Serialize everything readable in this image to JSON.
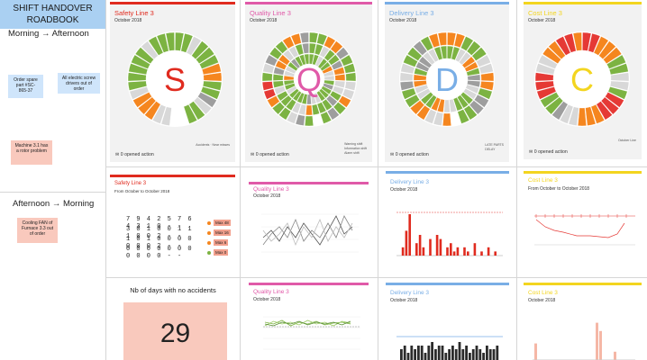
{
  "sidebar": {
    "title_line1": "SHIFT HANDOVER",
    "title_line2": "ROADBOOK",
    "period1": "Morning → Afternoon",
    "period2": "Afternoon → Morning",
    "notes": [
      "Order spare part #SC-865-37",
      "All electric screw drivers out of order",
      "Machine 3.1 has a rotor problem",
      "Cooling FAN of Furnace 3.3 out of order"
    ]
  },
  "colors": {
    "safety": "#e02b1f",
    "quality": "#e05aa8",
    "delivery": "#79aee6",
    "cost": "#f3d51f"
  },
  "wheels": [
    {
      "title": "Safety Line 3",
      "sub": "October 2018",
      "letter": "S",
      "color": "#e02b1f",
      "actions": "0 opened action",
      "legend": [
        "Accidents",
        "Near misses"
      ]
    },
    {
      "title": "Quality Line 3",
      "sub": "October 2018",
      "letter": "Q",
      "color": "#e05aa8",
      "actions": "0 opened action",
      "legend": [
        "Warning shift",
        "Information shift",
        "Alarm shift"
      ]
    },
    {
      "title": "Delivery Line 3",
      "sub": "October 2018",
      "letter": "D",
      "color": "#79aee6",
      "actions": "0 opened action",
      "legend": [
        "LATE PARTS",
        "DELAY"
      ]
    },
    {
      "title": "Cost Line 3",
      "sub": "October 2018",
      "letter": "C",
      "color": "#f3d51f",
      "actions": "0 opened action",
      "legend": [
        "October Line"
      ]
    }
  ],
  "row2": [
    {
      "title": "Safety Line 3",
      "sub": "From October to October 2018",
      "color": "#e02b1f"
    },
    {
      "title": "Quality Line 3",
      "sub": "October 2018",
      "color": "#e05aa8"
    },
    {
      "title": "Delivery Line 3",
      "sub": "October 2018",
      "color": "#79aee6"
    },
    {
      "title": "Cost Line 3",
      "sub": "From October to October 2018",
      "color": "#f3d51f"
    }
  ],
  "row3": [
    {
      "title": "Quality Line 3",
      "sub": "October 2018",
      "color": "#e05aa8"
    },
    {
      "title": "Delivery Line 3",
      "sub": "October 2018",
      "color": "#79aee6"
    },
    {
      "title": "Cost Line 3",
      "sub": "October 2018",
      "color": "#f3d51f"
    }
  ],
  "safety_table": {
    "rows": [
      {
        "digits": "79425764310",
        "badge": "Max 48"
      },
      {
        "digits": "30100111002",
        "badge": "Max 16"
      },
      {
        "digits": "10100000002",
        "badge": "Max 6"
      },
      {
        "digits": "00000000000",
        "badge": "Max 0"
      }
    ]
  },
  "accidents": {
    "label": "Nb of days with no accidents",
    "value": "29"
  }
}
